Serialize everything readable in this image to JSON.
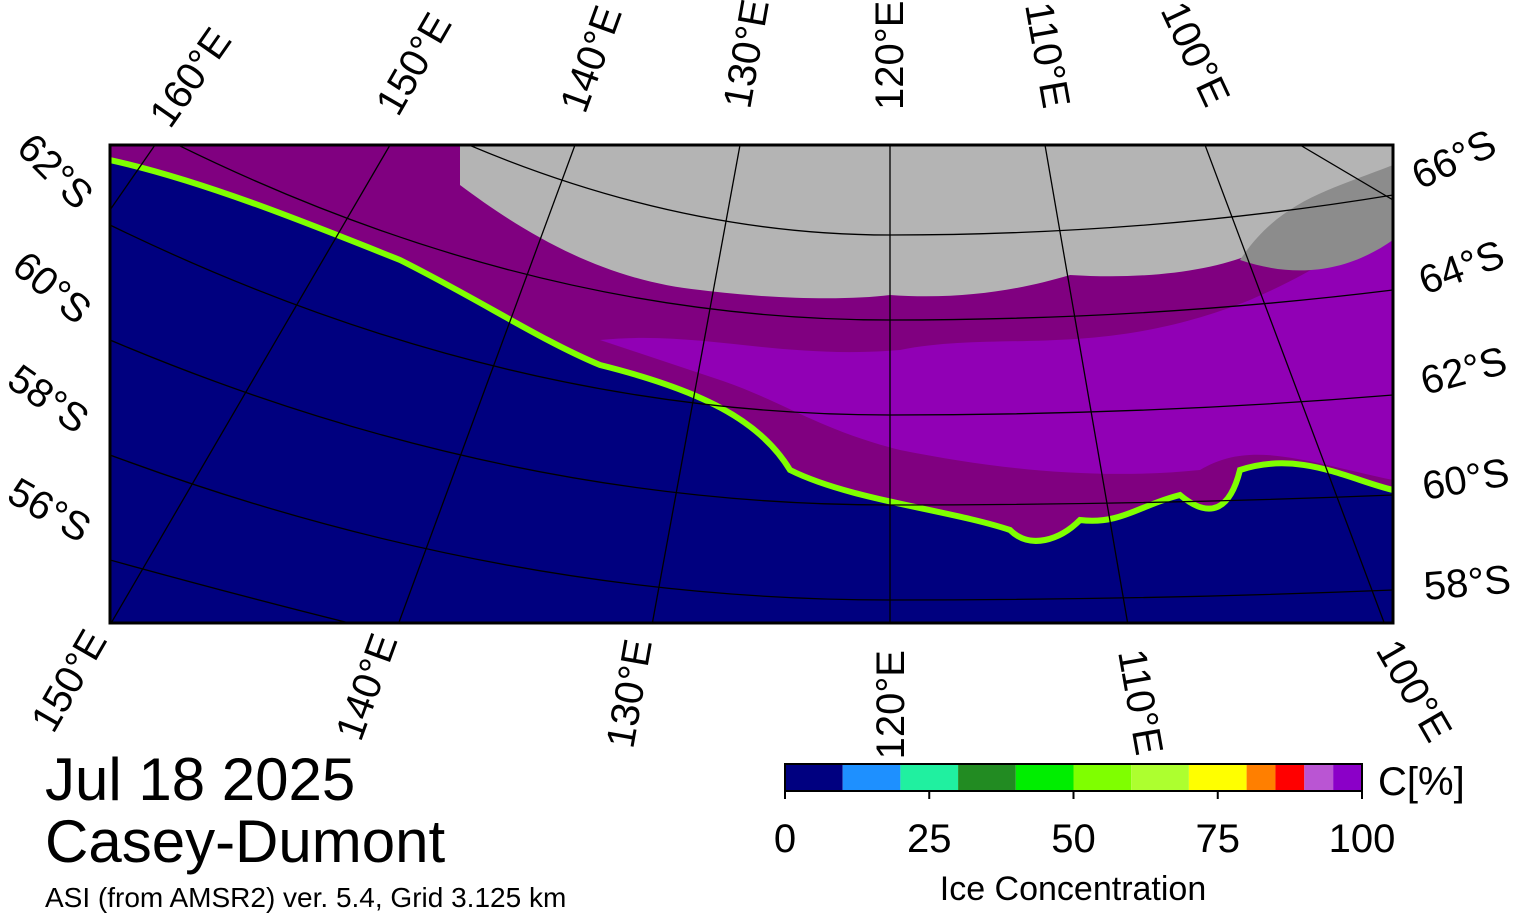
{
  "map": {
    "top_labels": [
      "160°E",
      "150°E",
      "140°E",
      "130°E",
      "120°E",
      "110°E",
      "100°E"
    ],
    "left_labels": [
      "62°S",
      "60°S",
      "58°S",
      "56°S"
    ],
    "right_labels": [
      "66°S",
      "64°S",
      "62°S",
      "60°S",
      "58°S"
    ],
    "bottom_labels": [
      "150°E",
      "140°E",
      "130°E",
      "120°E",
      "110°E",
      "100°E"
    ]
  },
  "date": "Jul 18 2025",
  "region": "Casey-Dumont",
  "product": "ASI (from AMSR2) ver. 5.4,  Grid 3.125 km",
  "colorbar": {
    "label": "Ice Concentration",
    "unit": "C[%]",
    "bounds": [
      0,
      10,
      20,
      30,
      40,
      50,
      60,
      70,
      80,
      85,
      90,
      95,
      100
    ],
    "colors": [
      "#000080",
      "#1e90ff",
      "#20f0a0",
      "#228b22",
      "#00ee00",
      "#7fff00",
      "#adff2f",
      "#ffff00",
      "#ff7f00",
      "#ff0000",
      "#ba55d3",
      "#8b00c8"
    ],
    "xlim": [
      0,
      100
    ],
    "xticks": [
      0,
      25,
      50,
      75,
      100
    ]
  }
}
